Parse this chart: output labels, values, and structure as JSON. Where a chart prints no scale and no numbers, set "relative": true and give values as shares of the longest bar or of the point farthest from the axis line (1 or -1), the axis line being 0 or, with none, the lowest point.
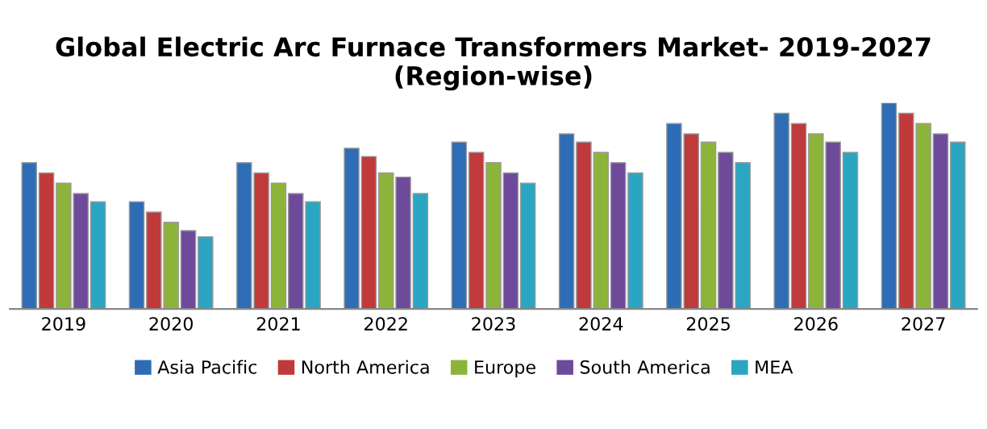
{
  "chart_data": {
    "type": "bar",
    "title": "Global Electric Arc Furnace Transformers Market- 2019-2027\n(Region-wise)",
    "relative": true,
    "legend": "bottom",
    "grid": false,
    "categories": [
      "2019",
      "2020",
      "2021",
      "2022",
      "2023",
      "2024",
      "2025",
      "2026",
      "2027"
    ],
    "series": [
      {
        "name": "Asia Pacific",
        "color": "#2e6db5",
        "values": [
          0.71,
          0.52,
          0.71,
          0.78,
          0.81,
          0.85,
          0.9,
          0.95,
          1
        ]
      },
      {
        "name": "North America",
        "color": "#c0393b",
        "values": [
          0.66,
          0.47,
          0.66,
          0.74,
          0.76,
          0.81,
          0.85,
          0.9,
          0.95
        ]
      },
      {
        "name": "Europe",
        "color": "#8db43a",
        "values": [
          0.61,
          0.42,
          0.61,
          0.66,
          0.71,
          0.76,
          0.81,
          0.85,
          0.9
        ]
      },
      {
        "name": "South America",
        "color": "#6e4a9a",
        "values": [
          0.56,
          0.38,
          0.56,
          0.64,
          0.66,
          0.71,
          0.76,
          0.81,
          0.85
        ]
      },
      {
        "name": "MEA",
        "color": "#2aa6c2",
        "values": [
          0.52,
          0.35,
          0.52,
          0.56,
          0.61,
          0.66,
          0.71,
          0.76,
          0.81
        ]
      }
    ]
  }
}
